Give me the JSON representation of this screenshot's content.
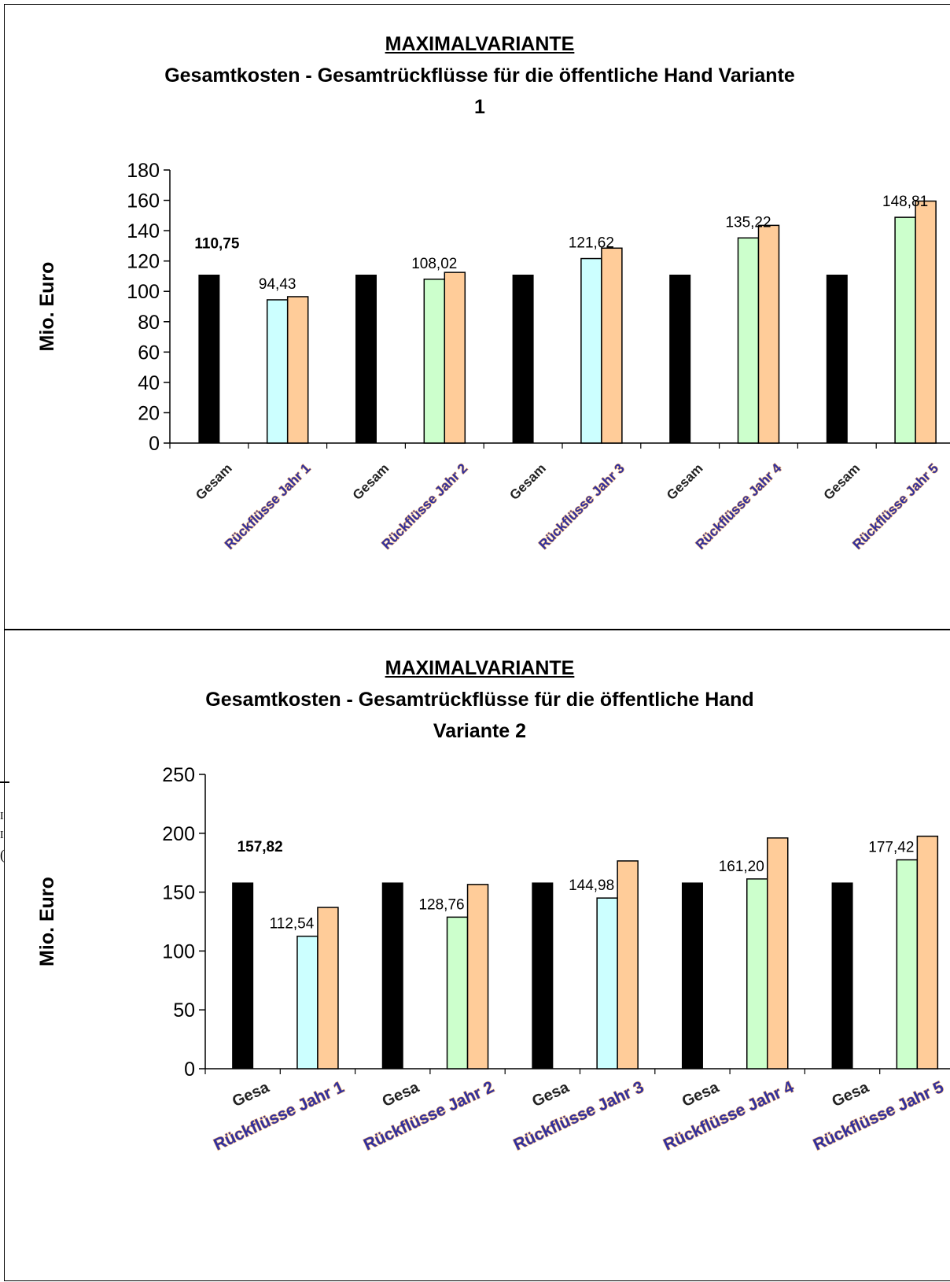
{
  "chart_data": [
    {
      "type": "bar",
      "title": "MAXIMALVARIANTE",
      "subtitle_line1": "Gesamtkosten - Gesamtrückflüsse für die öffentliche Hand Variante",
      "subtitle_line2": "1",
      "ylabel": "Mio. Euro",
      "ylim": [
        0,
        180
      ],
      "yticks": [
        "0",
        "20",
        "40",
        "60",
        "80",
        "100",
        "120",
        "140",
        "160",
        "180"
      ],
      "grid": false,
      "categories": [
        "Gesamtkosten",
        "Rückflüsse Jahr 1",
        "Gesamtkosten",
        "Rückflüsse Jahr 2",
        "Gesamtkosten",
        "Rückflüsse Jahr 3",
        "Gesamtkosten",
        "Rückflüsse Jahr 4",
        "Gesamtkosten",
        "Rückflüsse Jahr 5"
      ],
      "category_labels_visible": [
        "Gesam",
        "Rückflüsse Jahr 1",
        "Gesam",
        "Rückflüsse Jahr 2",
        "Gesam",
        "Rückflüsse Jahr 3",
        "Gesam",
        "Rückflüsse Jahr 4",
        "Gesam",
        "Rückflüsse Jahr 5"
      ],
      "groups": [
        {
          "cost": 110.75,
          "cost_label": "110,75",
          "return": 94.43,
          "return_label": "94,43",
          "return_color": "#ccffff",
          "extra": 96.5
        },
        {
          "cost": 110.75,
          "cost_label": "",
          "return": 108.02,
          "return_label": "108,02",
          "return_color": "#ccffcc",
          "extra": 112.5
        },
        {
          "cost": 110.75,
          "cost_label": "",
          "return": 121.62,
          "return_label": "121,62",
          "return_color": "#ccffff",
          "extra": 128.5
        },
        {
          "cost": 110.75,
          "cost_label": "",
          "return": 135.22,
          "return_label": "135,22",
          "return_color": "#ccffcc",
          "extra": 143.5
        },
        {
          "cost": 110.75,
          "cost_label": "",
          "return": 148.81,
          "return_label": "148,81",
          "return_color": "#ccffcc",
          "extra": 159.5
        }
      ],
      "colors": {
        "cost": "#000000",
        "extra": "#ffcc99",
        "border": "#000000"
      }
    },
    {
      "type": "bar",
      "title": "MAXIMALVARIANTE",
      "subtitle_line1": "Gesamtkosten - Gesamtrückflüsse für die öffentliche Hand",
      "subtitle_line2": "Variante 2",
      "ylabel": "Mio. Euro",
      "ylim": [
        0,
        250
      ],
      "yticks": [
        "0",
        "50",
        "100",
        "150",
        "200",
        "250"
      ],
      "grid": false,
      "categories": [
        "Gesamtkosten",
        "Rückflüsse Jahr 1",
        "Gesamtkosten",
        "Rückflüsse Jahr 2",
        "Gesamtkosten",
        "Rückflüsse Jahr 3",
        "Gesamtkosten",
        "Rückflüsse Jahr 4",
        "Gesamtkosten",
        "Rückflüsse Jahr 5"
      ],
      "category_labels_visible": [
        "Gesa",
        "Rückflüsse Jahr 1",
        "Gesa",
        "Rückflüsse Jahr 2",
        "Gesa",
        "Rückflüsse Jahr 3",
        "Gesa",
        "Rückflüsse Jahr 4",
        "Gesa",
        "Rückflüsse Jahr 5"
      ],
      "groups": [
        {
          "cost": 157.82,
          "cost_label": "157,82",
          "return": 112.54,
          "return_label": "112,54",
          "return_color": "#ccffff",
          "extra": 137
        },
        {
          "cost": 157.82,
          "cost_label": "",
          "return": 128.76,
          "return_label": "128,76",
          "return_color": "#ccffcc",
          "extra": 156.5
        },
        {
          "cost": 157.82,
          "cost_label": "",
          "return": 144.98,
          "return_label": "144,98",
          "return_color": "#ccffff",
          "extra": 176.5
        },
        {
          "cost": 157.82,
          "cost_label": "",
          "return": 161.2,
          "return_label": "161,20",
          "return_color": "#ccffcc",
          "extra": 196
        },
        {
          "cost": 157.82,
          "cost_label": "",
          "return": 177.42,
          "return_label": "177,42",
          "return_color": "#ccffcc",
          "extra": 197.5
        }
      ],
      "colors": {
        "cost": "#000000",
        "extra": "#ffcc99",
        "border": "#000000"
      }
    }
  ],
  "left_edge_fragments": [
    "I",
    "I",
    "("
  ]
}
